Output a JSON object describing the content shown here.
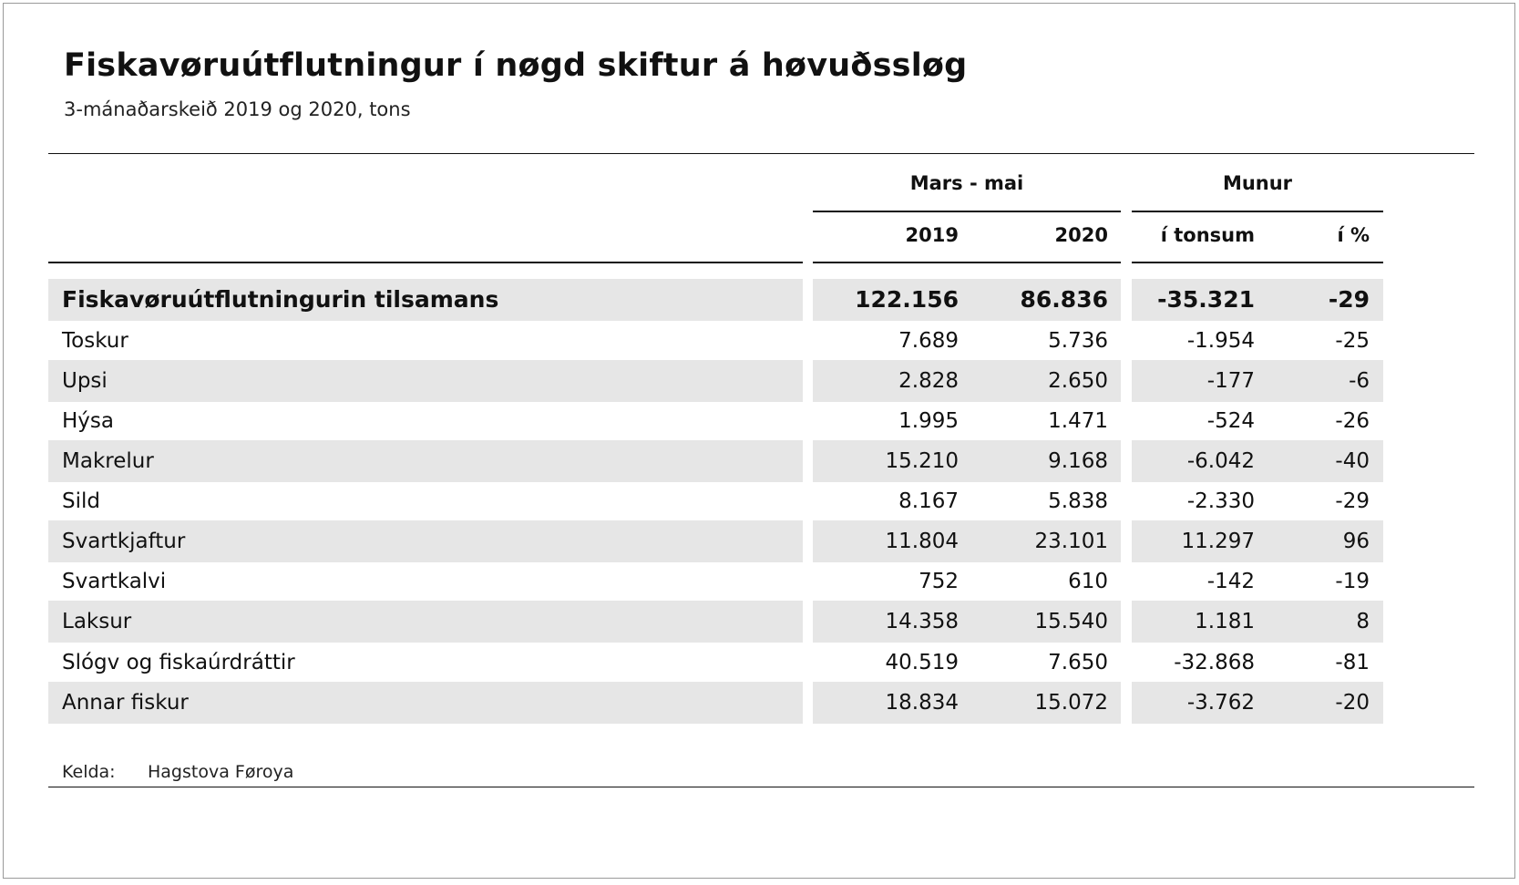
{
  "title": "Fiskavøruútflutningur í nøgd skiftur á høvuðssløg",
  "subtitle": "3-mánaðarskeið 2019 og 2020, tons",
  "header": {
    "group_period": "Mars - mai",
    "group_diff": "Munur",
    "col_2019": "2019",
    "col_2020": "2020",
    "col_diff_tons": "í tonsum",
    "col_diff_pct": "í %"
  },
  "colors": {
    "band": "#e6e6e6",
    "text": "#111111",
    "rule": "#111111"
  },
  "source": {
    "label": "Kelda:",
    "value": "Hagstova Føroya"
  },
  "chart_data": {
    "type": "table",
    "columns": [
      "",
      "2019",
      "2020",
      "í tonsum",
      "í %"
    ],
    "column_groups": [
      {
        "label": "Mars - mai",
        "columns": [
          "2019",
          "2020"
        ]
      },
      {
        "label": "Munur",
        "columns": [
          "í tonsum",
          "í %"
        ]
      }
    ],
    "rows": [
      {
        "label": "Fiskavøruútflutningurin tilsamans",
        "v2019": "122.156",
        "v2020": "86.836",
        "diff": "-35.321",
        "pct": "-29",
        "bold": true
      },
      {
        "label": "Toskur",
        "v2019": "7.689",
        "v2020": "5.736",
        "diff": "-1.954",
        "pct": "-25"
      },
      {
        "label": "Upsi",
        "v2019": "2.828",
        "v2020": "2.650",
        "diff": "-177",
        "pct": "-6"
      },
      {
        "label": "Hýsa",
        "v2019": "1.995",
        "v2020": "1.471",
        "diff": "-524",
        "pct": "-26"
      },
      {
        "label": "Makrelur",
        "v2019": "15.210",
        "v2020": "9.168",
        "diff": "-6.042",
        "pct": "-40"
      },
      {
        "label": "Sild",
        "v2019": "8.167",
        "v2020": "5.838",
        "diff": "-2.330",
        "pct": "-29"
      },
      {
        "label": "Svartkjaftur",
        "v2019": "11.804",
        "v2020": "23.101",
        "diff": "11.297",
        "pct": "96"
      },
      {
        "label": "Svartkalvi",
        "v2019": "752",
        "v2020": "610",
        "diff": "-142",
        "pct": "-19"
      },
      {
        "label": "Laksur",
        "v2019": "14.358",
        "v2020": "15.540",
        "diff": "1.181",
        "pct": "8"
      },
      {
        "label": "Slógv og fiskaúrdráttir",
        "v2019": "40.519",
        "v2020": "7.650",
        "diff": "-32.868",
        "pct": "-81"
      },
      {
        "label": "Annar fiskur",
        "v2019": "18.834",
        "v2020": "15.072",
        "diff": "-3.762",
        "pct": "-20"
      }
    ]
  }
}
